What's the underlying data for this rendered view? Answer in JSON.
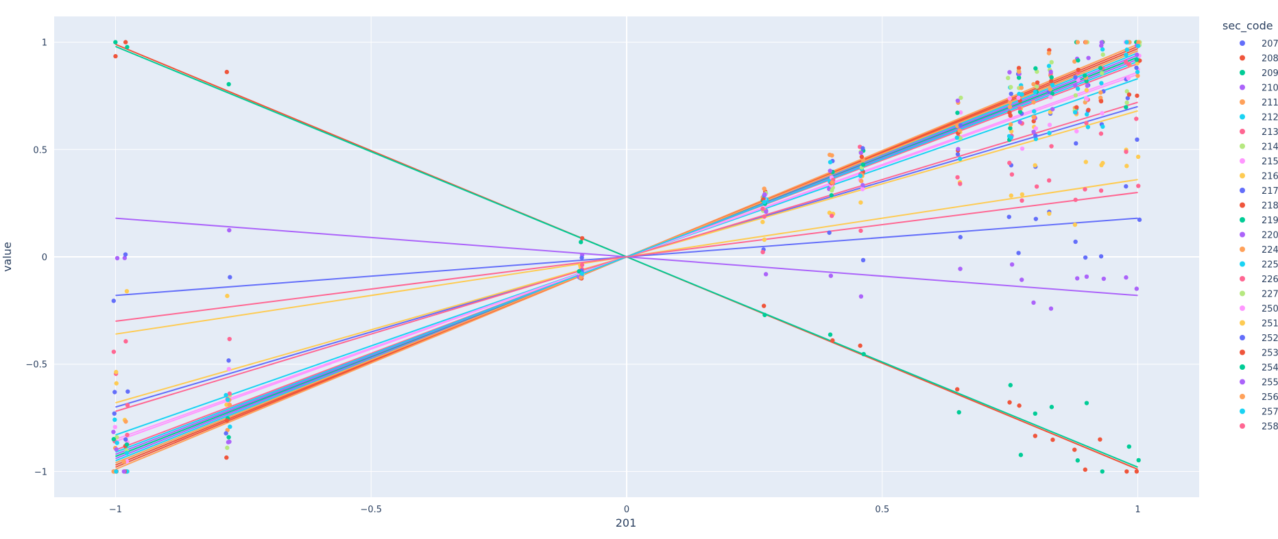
{
  "chart_data": {
    "type": "scatter",
    "xlabel": "201",
    "ylabel": "value",
    "xlim": [
      -1.12,
      1.12
    ],
    "ylim": [
      -1.12,
      1.12
    ],
    "x_ticks": [
      -1,
      -0.5,
      0,
      0.5,
      1
    ],
    "x_tick_labels": [
      "−1",
      "−0.5",
      "0",
      "0.5",
      "1"
    ],
    "y_ticks": [
      -1,
      -0.5,
      0,
      0.5,
      1
    ],
    "y_tick_labels": [
      "−1",
      "−0.5",
      "0",
      "0.5",
      "1"
    ],
    "grid": true,
    "plot_background": "#e5ecf6",
    "legend": {
      "title": "sec_code",
      "placement": "right"
    },
    "x_positions": [
      -1.0,
      -0.98,
      -0.78,
      -0.09,
      0.27,
      0.4,
      0.46,
      0.65,
      0.75,
      0.77,
      0.8,
      0.83,
      0.88,
      0.9,
      0.93,
      0.98,
      1.0
    ],
    "series": [
      {
        "name": "207",
        "color": "#636efa",
        "slope": 0.7
      },
      {
        "name": "208",
        "color": "#EF553B",
        "slope": -0.99
      },
      {
        "name": "209",
        "color": "#00cc96",
        "slope": -0.98
      },
      {
        "name": "210",
        "color": "#ab63fa",
        "slope": -0.18
      },
      {
        "name": "211",
        "color": "#FFA15A",
        "slope": 0.97
      },
      {
        "name": "212",
        "color": "#19d3f3",
        "slope": 0.95
      },
      {
        "name": "213",
        "color": "#FF6692",
        "slope": 0.9
      },
      {
        "name": "214",
        "color": "#B6E880",
        "slope": 0.93
      },
      {
        "name": "215",
        "color": "#FF97FF",
        "slope": 0.86
      },
      {
        "name": "216",
        "color": "#FECB52",
        "slope": 0.68
      },
      {
        "name": "217",
        "color": "#636efa",
        "slope": 0.18
      },
      {
        "name": "218",
        "color": "#EF553B",
        "slope": 0.98
      },
      {
        "name": "219",
        "color": "#00cc96",
        "slope": 0.96
      },
      {
        "name": "220",
        "color": "#ab63fa",
        "slope": 0.94
      },
      {
        "name": "224",
        "color": "#FFA15A",
        "slope": 0.99
      },
      {
        "name": "225",
        "color": "#19d3f3",
        "slope": 0.83
      },
      {
        "name": "226",
        "color": "#FF6692",
        "slope": 0.72
      },
      {
        "name": "227",
        "color": "#B6E880",
        "slope": 0.92
      },
      {
        "name": "250",
        "color": "#FF97FF",
        "slope": 0.85
      },
      {
        "name": "251",
        "color": "#FECB52",
        "slope": 0.36
      },
      {
        "name": "252",
        "color": "#636efa",
        "slope": 0.93
      },
      {
        "name": "253",
        "color": "#EF553B",
        "slope": 0.97
      },
      {
        "name": "254",
        "color": "#00cc96",
        "slope": 0.93
      },
      {
        "name": "255",
        "color": "#ab63fa",
        "slope": 0.92
      },
      {
        "name": "256",
        "color": "#FFA15A",
        "slope": 0.96
      },
      {
        "name": "257",
        "color": "#19d3f3",
        "slope": 0.91
      },
      {
        "name": "258",
        "color": "#FF6692",
        "slope": 0.3
      }
    ]
  }
}
